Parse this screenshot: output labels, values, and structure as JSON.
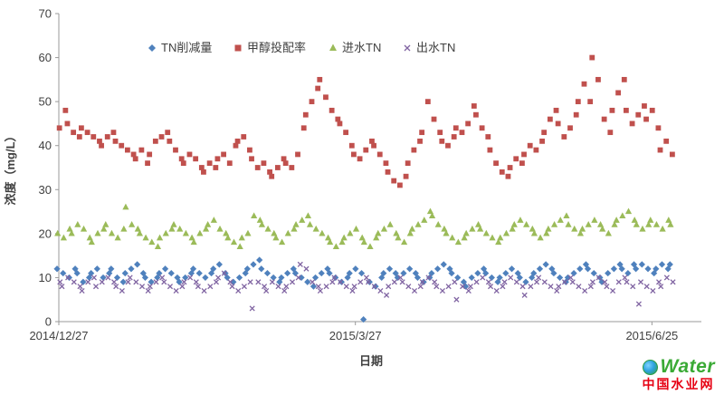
{
  "chart_data": {
    "type": "scatter",
    "title": "",
    "xlabel": "日期",
    "ylabel": "浓度（mg/L）",
    "ylim": [
      0,
      70
    ],
    "y_ticks": [
      0,
      10,
      20,
      30,
      40,
      50,
      60,
      70
    ],
    "x_tick_labels": [
      "2014/12/27",
      "2015/3/27",
      "2015/6/25"
    ],
    "x_tick_days": [
      0,
      90,
      180
    ],
    "x_axis_day_max": 195,
    "data_day_span": 186,
    "grid": false,
    "legend_position": "top-inside",
    "axis_color": "#9a9a9a",
    "text_color": "#404040",
    "series": [
      {
        "name": "TN削减量",
        "marker": "diamond",
        "color": "#4F81BD",
        "values": [
          12,
          11,
          10,
          12,
          11,
          9,
          10,
          11,
          12,
          10,
          11,
          12,
          10,
          9,
          11,
          12,
          13,
          11,
          10,
          9,
          10,
          11,
          12,
          11,
          10,
          9,
          10,
          11,
          12,
          11,
          10,
          11,
          12,
          13,
          11,
          10,
          9,
          10,
          11,
          12,
          13,
          14,
          12,
          11,
          10,
          9,
          10,
          11,
          12,
          11,
          10,
          9,
          8,
          10,
          11,
          12,
          11,
          10,
          9,
          10,
          11,
          12,
          11,
          0.5,
          9,
          8,
          10,
          11,
          12,
          11,
          10,
          11,
          12,
          11,
          10,
          9,
          10,
          11,
          12,
          13,
          12,
          11,
          10,
          9,
          8,
          10,
          11,
          12,
          11,
          10,
          9,
          10,
          11,
          12,
          11,
          10,
          9,
          10,
          11,
          12,
          13,
          12,
          11,
          10,
          9,
          10,
          11,
          12,
          13,
          12,
          11,
          10,
          9,
          11,
          12,
          13,
          12,
          11,
          13,
          12,
          13,
          12,
          11,
          12,
          13,
          12,
          13
        ]
      },
      {
        "name": "甲醇投配率",
        "marker": "square",
        "color": "#C0504D",
        "values": [
          44,
          48,
          45,
          43,
          42,
          44,
          43,
          42,
          41,
          40,
          42,
          43,
          41,
          40,
          39,
          38,
          37,
          39,
          36,
          38,
          41,
          42,
          43,
          41,
          39,
          37,
          36,
          38,
          37,
          35,
          34,
          36,
          35,
          37,
          38,
          36,
          40,
          41,
          42,
          39,
          37,
          35,
          36,
          34,
          33,
          35,
          37,
          36,
          35,
          38,
          44,
          47,
          50,
          53,
          55,
          51,
          48,
          46,
          45,
          43,
          40,
          38,
          37,
          39,
          41,
          40,
          38,
          36,
          34,
          32,
          31,
          33,
          36,
          39,
          41,
          43,
          50,
          46,
          43,
          41,
          40,
          42,
          44,
          43,
          45,
          49,
          47,
          44,
          42,
          39,
          36,
          34,
          33,
          35,
          37,
          36,
          38,
          40,
          39,
          41,
          43,
          46,
          48,
          45,
          42,
          44,
          47,
          50,
          54,
          50,
          60,
          55,
          46,
          43,
          48,
          52,
          55,
          48,
          45,
          47,
          49,
          46,
          48,
          44,
          39,
          41,
          38
        ]
      },
      {
        "name": "进水TN",
        "marker": "triangle",
        "color": "#9BBB59",
        "values": [
          20,
          19,
          21,
          20,
          22,
          21,
          19,
          18,
          20,
          21,
          22,
          20,
          19,
          21,
          26,
          22,
          21,
          20,
          19,
          18,
          17,
          19,
          20,
          21,
          22,
          21,
          20,
          19,
          18,
          20,
          21,
          22,
          23,
          21,
          20,
          19,
          18,
          17,
          19,
          20,
          24,
          23,
          22,
          21,
          20,
          19,
          18,
          20,
          21,
          22,
          23,
          24,
          22,
          21,
          20,
          19,
          18,
          17,
          18,
          19,
          20,
          21,
          19,
          18,
          17,
          19,
          20,
          21,
          22,
          20,
          19,
          18,
          20,
          21,
          22,
          23,
          25,
          24,
          22,
          21,
          20,
          19,
          18,
          19,
          20,
          21,
          22,
          21,
          20,
          19,
          18,
          19,
          20,
          21,
          22,
          23,
          22,
          21,
          20,
          19,
          20,
          21,
          22,
          23,
          24,
          22,
          21,
          20,
          21,
          22,
          23,
          22,
          21,
          20,
          22,
          23,
          24,
          25,
          23,
          22,
          21,
          22,
          23,
          22,
          21,
          23,
          22
        ]
      },
      {
        "name": "出水TN",
        "marker": "x",
        "color": "#8064A2",
        "values": [
          9,
          8,
          10,
          9,
          8,
          7,
          9,
          10,
          8,
          9,
          10,
          9,
          8,
          7,
          9,
          10,
          9,
          8,
          7,
          8,
          9,
          10,
          9,
          8,
          7,
          8,
          9,
          10,
          9,
          8,
          7,
          8,
          9,
          10,
          11,
          9,
          8,
          7,
          8,
          9,
          3,
          9,
          8,
          7,
          9,
          8,
          7,
          8,
          9,
          10,
          13,
          12,
          9,
          8,
          7,
          8,
          9,
          10,
          9,
          8,
          7,
          8,
          9,
          10,
          9,
          8,
          7,
          6,
          8,
          9,
          10,
          9,
          8,
          7,
          8,
          9,
          10,
          9,
          8,
          7,
          8,
          9,
          5,
          8,
          7,
          8,
          9,
          10,
          9,
          8,
          7,
          8,
          9,
          10,
          9,
          8,
          6,
          8,
          9,
          10,
          9,
          8,
          7,
          8,
          9,
          10,
          9,
          8,
          7,
          8,
          9,
          10,
          9,
          8,
          7,
          9,
          10,
          9,
          8,
          4,
          9,
          8,
          7,
          9,
          8,
          10,
          9
        ]
      }
    ]
  },
  "watermark": {
    "line1": "Water",
    "line2": "中国水业网"
  }
}
